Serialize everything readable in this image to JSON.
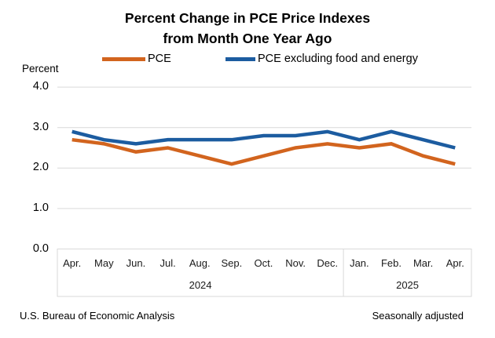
{
  "title": {
    "line1": "Percent Change in PCE Price Indexes",
    "line2": "from Month One Year Ago"
  },
  "legend": {
    "items": [
      {
        "label": "PCE",
        "color": "#D2641E"
      },
      {
        "label": "PCE excluding food and energy",
        "color": "#1C5CA0"
      }
    ]
  },
  "y_axis": {
    "label": "Percent"
  },
  "footer": {
    "left": "U.S. Bureau of Economic Analysis",
    "right": "Seasonally adjusted"
  },
  "colors": {
    "pce_orange": "#D2641E",
    "core_blue": "#1C5CA0",
    "gridline": "#D9D9D9",
    "axis_box": "#D9D9D9"
  },
  "chart_data": {
    "type": "line",
    "title": "Percent Change in PCE Price Indexes from Month One Year Ago",
    "ylabel": "Percent",
    "categories": [
      "Apr.",
      "May",
      "Jun.",
      "Jul.",
      "Aug.",
      "Sep.",
      "Oct.",
      "Nov.",
      "Dec.",
      "Jan.",
      "Feb.",
      "Mar.",
      "Apr."
    ],
    "year_groups": [
      {
        "label": "2024",
        "start_index": 0,
        "end_index": 8
      },
      {
        "label": "2025",
        "start_index": 9,
        "end_index": 12
      }
    ],
    "series": [
      {
        "name": "PCE",
        "color": "#D2641E",
        "values": [
          2.7,
          2.6,
          2.4,
          2.5,
          2.3,
          2.1,
          2.3,
          2.5,
          2.6,
          2.5,
          2.6,
          2.3,
          2.1
        ]
      },
      {
        "name": "PCE excluding food and energy",
        "color": "#1C5CA0",
        "values": [
          2.9,
          2.7,
          2.6,
          2.7,
          2.7,
          2.7,
          2.8,
          2.8,
          2.9,
          2.7,
          2.9,
          2.7,
          2.5
        ]
      }
    ],
    "ylim": [
      0,
      4
    ],
    "y_ticks": [
      4.0,
      3.0,
      2.0,
      1.0,
      0.0
    ],
    "y_tick_labels": [
      "4.0",
      "3.0",
      "2.0",
      "1.0",
      "0.0"
    ],
    "grid": "horizontal",
    "legend_position": "top",
    "notes": "Seasonally adjusted"
  }
}
